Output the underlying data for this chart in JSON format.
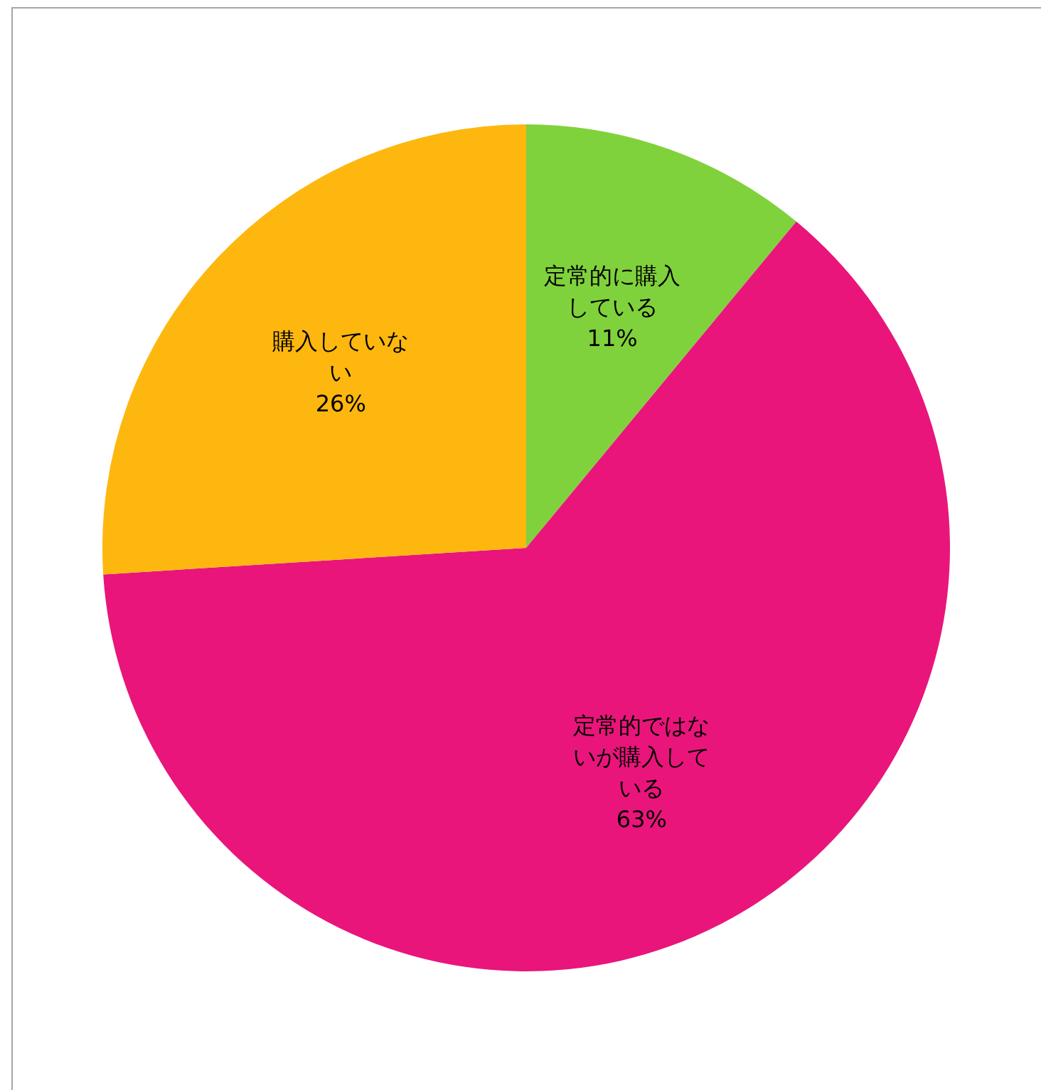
{
  "chart_data": {
    "type": "pie",
    "categories": [
      "定常的に購入している",
      "定常的ではないが購入している",
      "購入していない"
    ],
    "values": [
      11,
      63,
      26
    ],
    "colors": [
      "#80d23c",
      "#e9157b",
      "#fdb70f"
    ],
    "value_labels": [
      "11%",
      "63%",
      "26%"
    ],
    "legend": false
  }
}
